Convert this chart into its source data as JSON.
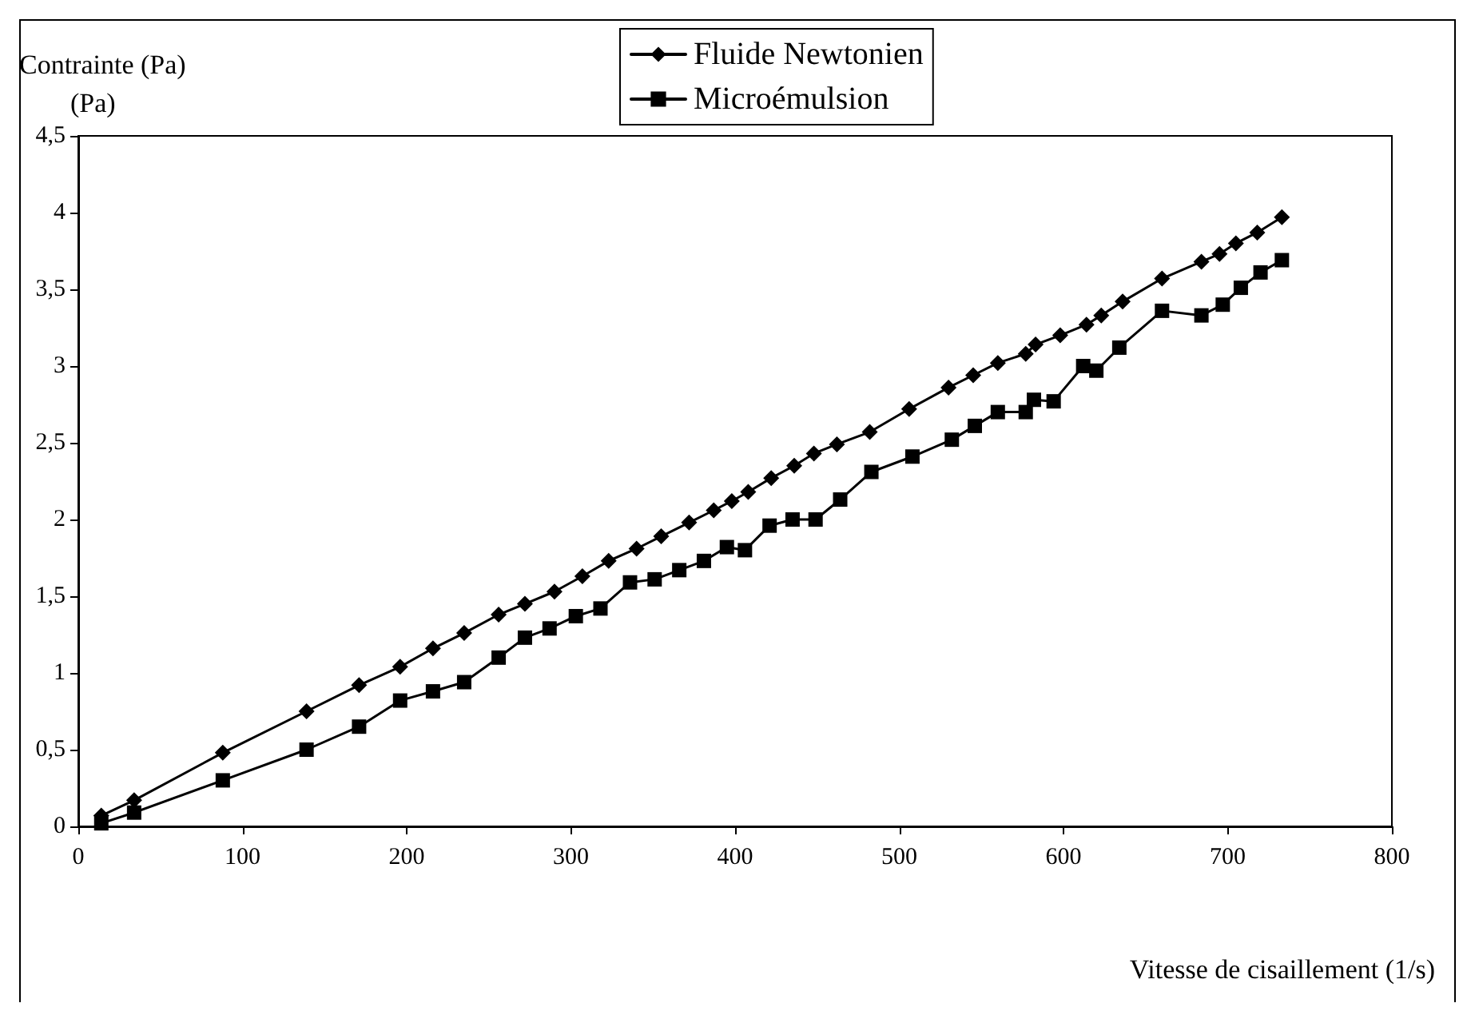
{
  "chart_data": {
    "type": "line",
    "ylabel": "Contrainte (Pa)\n(Pa)",
    "xlabel": "Vitesse de cisaillement (1/s)",
    "xlim": [
      0,
      800
    ],
    "xticks": [
      0,
      100,
      200,
      300,
      400,
      500,
      600,
      700,
      800
    ],
    "ylim": [
      0,
      4.5
    ],
    "yticks": [
      0,
      {
        "value": 0.5,
        "label": "0,5"
      },
      1,
      {
        "value": 1.5,
        "label": "1,5"
      },
      2,
      {
        "value": 2.5,
        "label": "2,5"
      },
      3,
      {
        "value": 3.5,
        "label": "3,5"
      },
      4,
      {
        "value": 4.5,
        "label": "4,5"
      }
    ],
    "grid": false,
    "legend": "top",
    "line_style": "solid",
    "series": [
      {
        "name": "Fluide Newtonien",
        "color": "#000000",
        "marker": "diamond",
        "x": [
          14,
          34,
          88,
          139,
          171,
          196,
          216,
          235,
          256,
          272,
          290,
          307,
          323,
          340,
          355,
          372,
          387,
          398,
          408,
          422,
          436,
          448,
          462,
          482,
          506,
          530,
          545,
          560,
          577,
          583,
          598,
          614,
          623,
          636,
          660,
          684,
          695,
          705,
          718,
          733
        ],
        "values": [
          0.07,
          0.17,
          0.48,
          0.75,
          0.92,
          1.04,
          1.16,
          1.26,
          1.38,
          1.45,
          1.53,
          1.63,
          1.73,
          1.81,
          1.89,
          1.98,
          2.06,
          2.12,
          2.18,
          2.27,
          2.35,
          2.43,
          2.49,
          2.57,
          2.72,
          2.86,
          2.94,
          3.02,
          3.08,
          3.14,
          3.2,
          3.27,
          3.33,
          3.42,
          3.57,
          3.68,
          3.73,
          3.8,
          3.87,
          3.97
        ]
      },
      {
        "name": "Microémulsion",
        "color": "#000000",
        "marker": "square",
        "x": [
          14,
          34,
          88,
          139,
          171,
          196,
          216,
          235,
          256,
          272,
          287,
          303,
          318,
          336,
          351,
          366,
          381,
          395,
          406,
          421,
          435,
          449,
          464,
          483,
          508,
          532,
          546,
          560,
          577,
          582,
          594,
          612,
          620,
          634,
          660,
          684,
          697,
          708,
          720,
          733
        ],
        "values": [
          0.02,
          0.09,
          0.3,
          0.5,
          0.65,
          0.82,
          0.88,
          0.94,
          1.1,
          1.23,
          1.29,
          1.37,
          1.42,
          1.59,
          1.61,
          1.67,
          1.73,
          1.82,
          1.8,
          1.96,
          2.0,
          2.0,
          2.13,
          2.31,
          2.41,
          2.52,
          2.61,
          2.7,
          2.7,
          2.78,
          2.77,
          3.0,
          2.97,
          3.12,
          3.36,
          3.33,
          3.4,
          3.51,
          3.61,
          3.69
        ]
      }
    ]
  }
}
